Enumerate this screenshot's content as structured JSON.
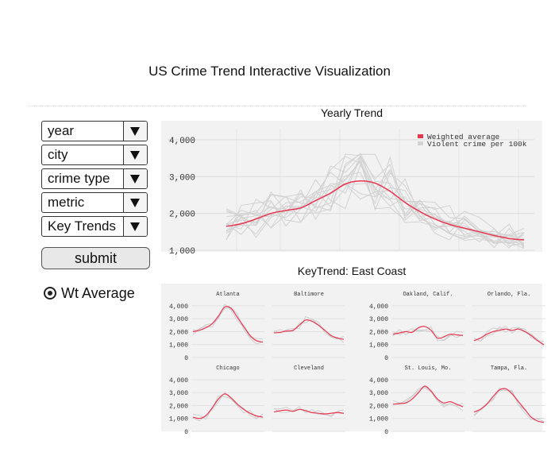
{
  "page": {
    "title": "US Crime Trend Interactive Visualization"
  },
  "controls": {
    "dropdowns": [
      {
        "label": "year"
      },
      {
        "label": "city"
      },
      {
        "label": "crime type"
      },
      {
        "label": "metric"
      },
      {
        "label": "Key Trends"
      }
    ],
    "submit_label": "submit",
    "radio": {
      "label": "Wt Average",
      "checked": true
    }
  },
  "colors": {
    "weighted": "#e8354f",
    "violent": "#d2d2d2",
    "chart_bg": "#f2f2f2"
  },
  "chart_data": [
    {
      "type": "line",
      "title": "Yearly Trend",
      "ylim": [
        1000,
        4300
      ],
      "yticks": [
        "4,000",
        "3,000",
        "2,000",
        "1,000"
      ],
      "ytick_values": [
        4000,
        3000,
        2000,
        1000
      ],
      "grid": true,
      "legend_position": "top-right",
      "legend": [
        "Weighted average",
        "Violent crime per 100k"
      ],
      "series": [
        {
          "name": "Weighted average",
          "values": [
            1650,
            1720,
            1850,
            2000,
            2080,
            2150,
            2350,
            2550,
            2800,
            2880,
            2820,
            2600,
            2300,
            2050,
            1850,
            1700,
            1600,
            1500,
            1400,
            1320,
            1280
          ]
        }
      ]
    },
    {
      "type": "line",
      "title": "KeyTrend: East Coast",
      "ylim": [
        0,
        4300
      ],
      "yticks": [
        "4,000",
        "3,000",
        "2,000",
        "1,000",
        "0"
      ],
      "ytick_values": [
        4000,
        3000,
        2000,
        1000,
        0
      ],
      "panels": [
        {
          "name": "Atlanta",
          "values": [
            2000,
            2100,
            2300,
            2600,
            3200,
            3900,
            3800,
            3100,
            2400,
            1700,
            1300,
            1200
          ]
        },
        {
          "name": "Baltimore",
          "values": [
            1900,
            1950,
            2050,
            2100,
            2500,
            2900,
            2800,
            2500,
            2100,
            1700,
            1500,
            1400
          ]
        },
        {
          "name": "Oakland, Calif.",
          "values": [
            1800,
            1900,
            2000,
            1950,
            2300,
            2400,
            2100,
            1500,
            1600,
            1800,
            1750,
            1700
          ]
        },
        {
          "name": "Orlando, Fla.",
          "values": [
            1300,
            1500,
            1800,
            2000,
            2100,
            2200,
            2100,
            2200,
            2000,
            1700,
            1300,
            1000
          ]
        },
        {
          "name": "Chicago",
          "values": [
            1100,
            1000,
            1200,
            1800,
            2500,
            2900,
            2600,
            2100,
            1700,
            1400,
            1200,
            1100
          ]
        },
        {
          "name": "Cleveland",
          "values": [
            1500,
            1600,
            1650,
            1550,
            1700,
            1600,
            1450,
            1400,
            1350,
            1400,
            1450,
            1400
          ]
        },
        {
          "name": "St. Louis, Mo.",
          "values": [
            2100,
            2150,
            2200,
            2500,
            3000,
            3500,
            3100,
            2500,
            2200,
            2300,
            2100,
            1900
          ]
        },
        {
          "name": "Tampa, Fla.",
          "values": [
            1500,
            1700,
            2100,
            2700,
            3200,
            3300,
            2900,
            2300,
            1700,
            1100,
            800,
            700
          ]
        }
      ]
    }
  ]
}
